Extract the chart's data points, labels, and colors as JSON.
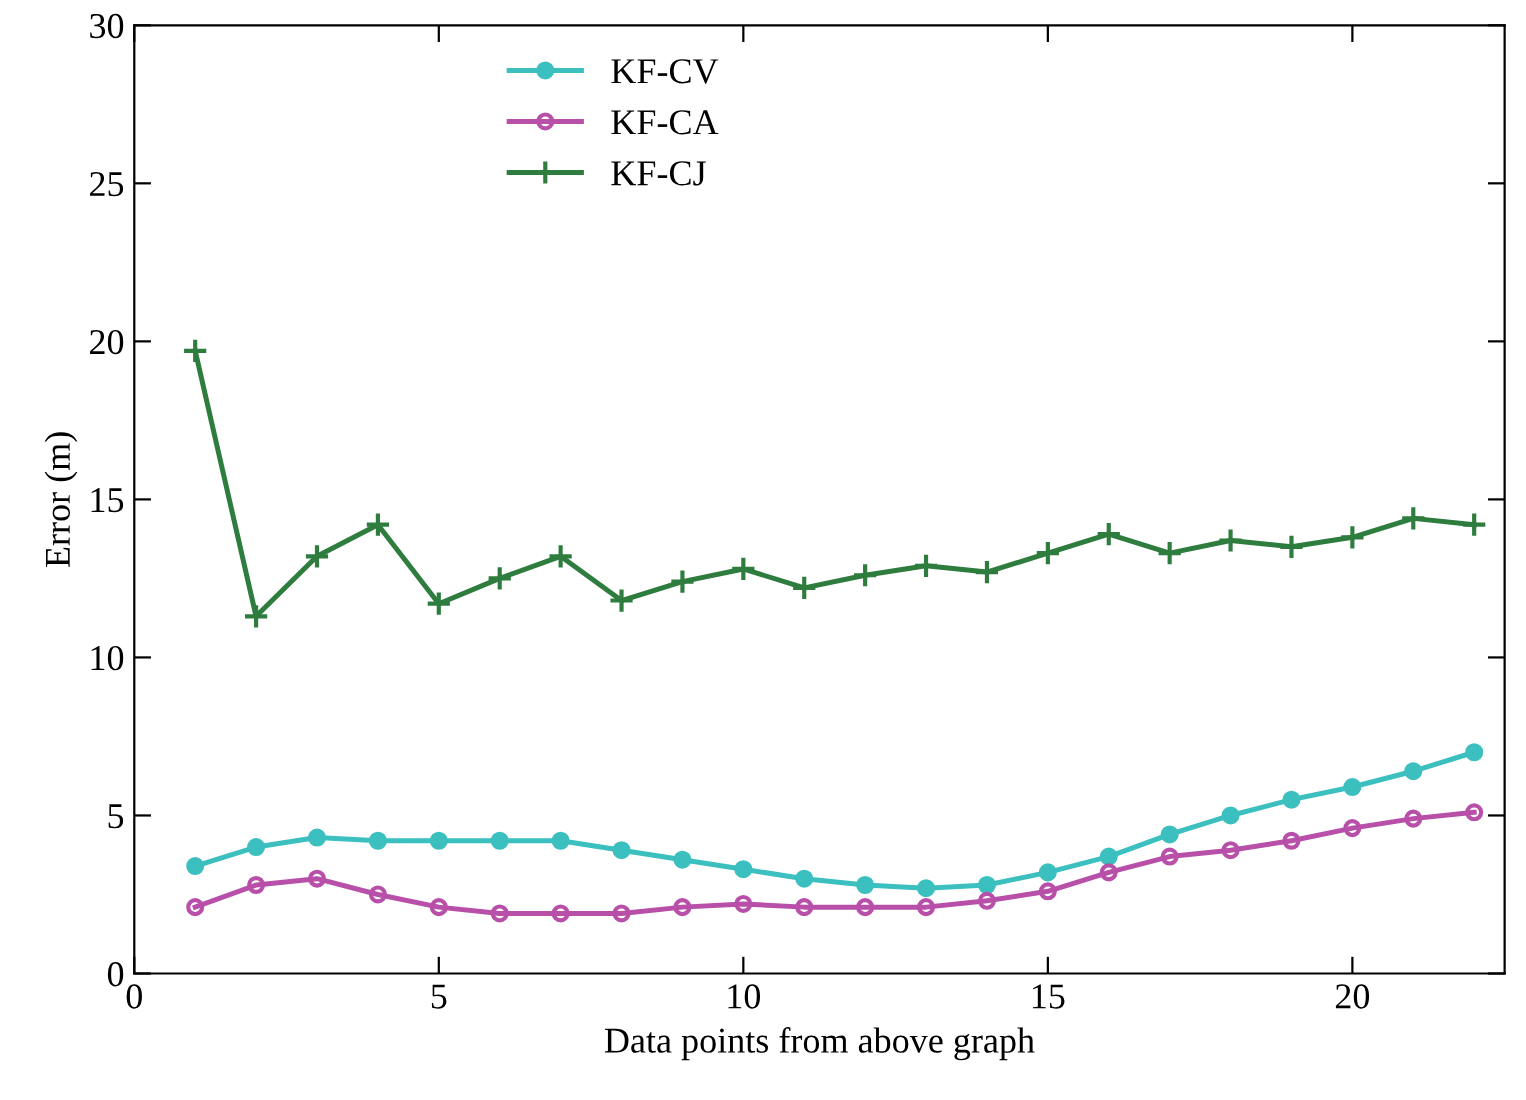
{
  "chart_data": {
    "type": "line",
    "xlabel": "Data points from above graph",
    "ylabel": "Error (m)",
    "x": [
      1,
      2,
      3,
      4,
      5,
      6,
      7,
      8,
      9,
      10,
      11,
      12,
      13,
      14,
      15,
      16,
      17,
      18,
      19,
      20,
      21,
      22
    ],
    "series": [
      {
        "name": "KF-CV",
        "color": "#3bbfbf",
        "marker": "circle",
        "values": [
          3.4,
          4.0,
          4.3,
          4.2,
          4.2,
          4.2,
          4.2,
          3.9,
          3.6,
          3.3,
          3.0,
          2.8,
          2.7,
          2.8,
          3.2,
          3.7,
          4.4,
          5.0,
          5.5,
          5.9,
          6.4,
          7.0
        ]
      },
      {
        "name": "KF-CA",
        "color": "#b84fa8",
        "marker": "circle_open",
        "values": [
          2.1,
          2.8,
          3.0,
          2.5,
          2.1,
          1.9,
          1.9,
          1.9,
          2.1,
          2.2,
          2.1,
          2.1,
          2.1,
          2.3,
          2.6,
          3.2,
          3.7,
          3.9,
          4.2,
          4.6,
          4.9,
          5.1
        ]
      },
      {
        "name": "KF-CJ",
        "color": "#2e7d3e",
        "marker": "cross",
        "values": [
          19.7,
          11.3,
          13.2,
          14.2,
          11.7,
          12.5,
          13.2,
          11.8,
          12.4,
          12.8,
          12.2,
          12.6,
          12.9,
          12.7,
          13.3,
          13.9,
          13.3,
          13.7,
          13.5,
          13.8,
          14.4,
          14.2
        ]
      }
    ],
    "xlim": [
      0,
      22.5
    ],
    "xticks": [
      0,
      5,
      10,
      15,
      20
    ],
    "ylim": [
      0,
      30
    ],
    "yticks": [
      0,
      5,
      10,
      15,
      20,
      25,
      30
    ],
    "grid": false,
    "legend": "top",
    "line_style": "solid"
  }
}
